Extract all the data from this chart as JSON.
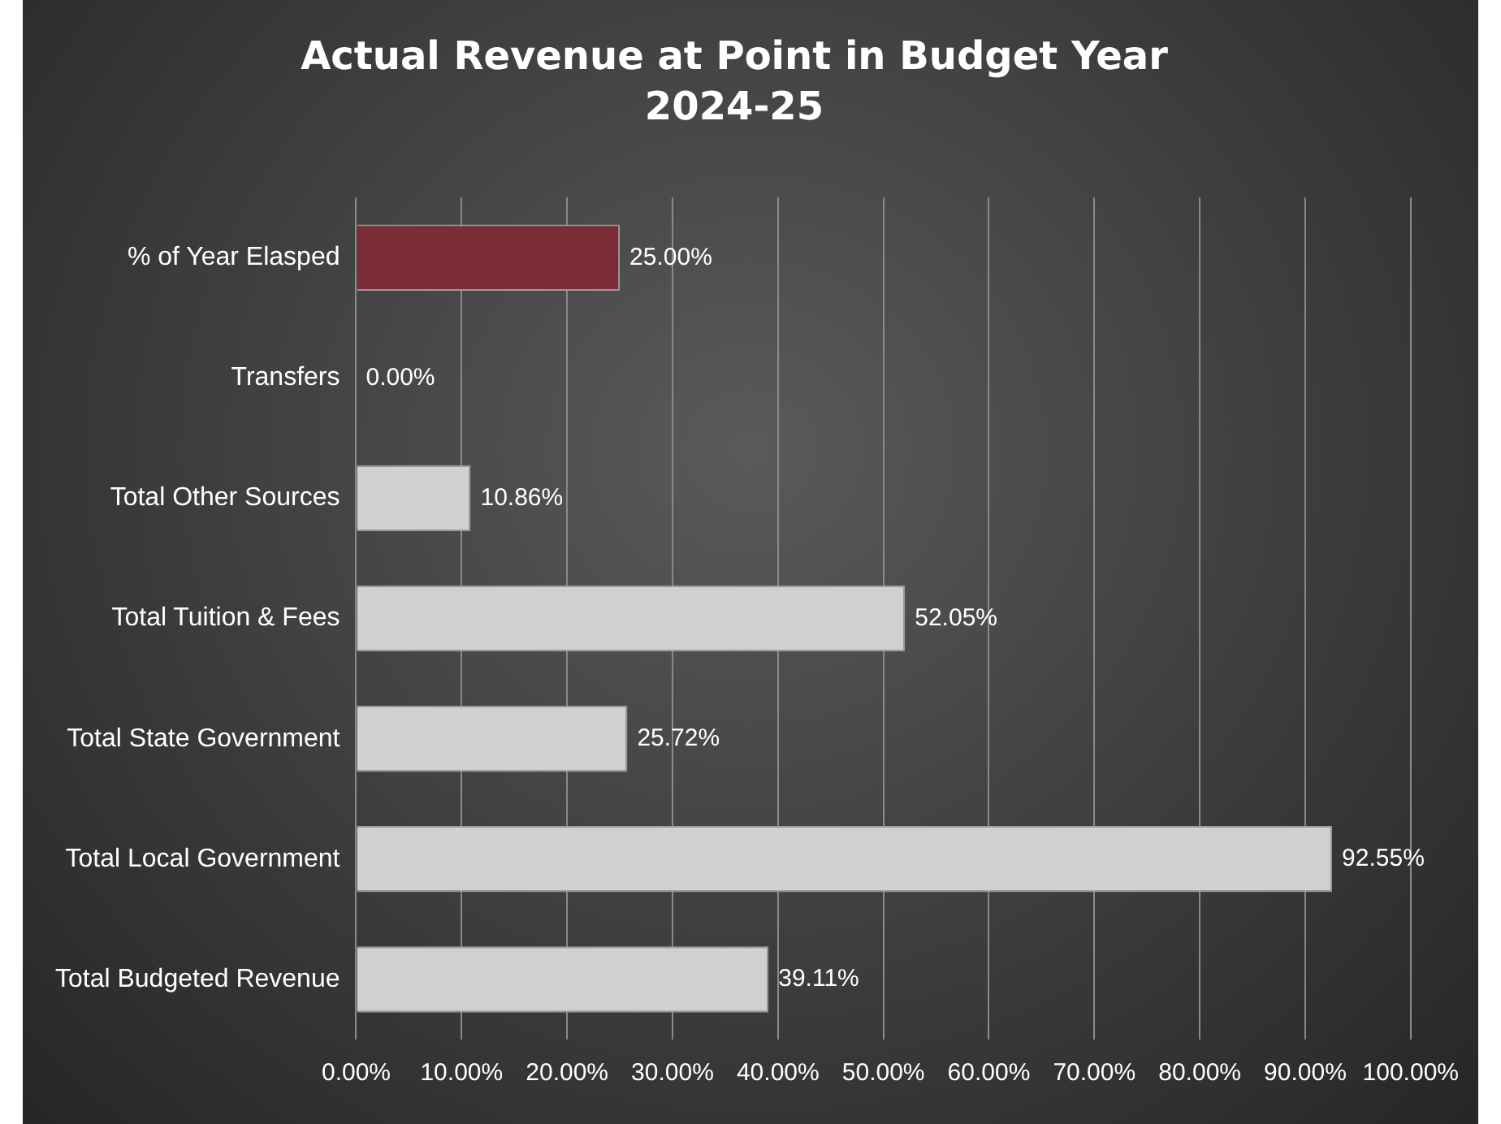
{
  "chart_data": {
    "type": "bar",
    "orientation": "horizontal",
    "title": "Actual Revenue at Point in Budget Year",
    "subtitle": "2024-25",
    "categories": [
      "% of Year Elasped",
      "Transfers",
      "Total Other Sources",
      "Total Tuition & Fees",
      "Total State Government",
      "Total Local Government",
      "Total Budgeted Revenue"
    ],
    "values": [
      25,
      0,
      10.86,
      52.05,
      25.72,
      92.55,
      39.11
    ],
    "colors": [
      "#7b2c34",
      "#d0d0d0",
      "#d0d0d0",
      "#d0d0d0",
      "#d0d0d0",
      "#d0d0d0",
      "#d0d0d0"
    ],
    "value_labels": [
      "25.00%",
      "0.00%",
      "10.86%",
      "52.05%",
      "25.72%",
      "92.55%",
      "39.11%"
    ],
    "xlim": [
      0,
      100
    ],
    "xticks": [
      {
        "value": 0,
        "label": "0.00%"
      },
      {
        "value": 10,
        "label": "10.00%"
      },
      {
        "value": 20,
        "label": "20.00%"
      },
      {
        "value": 30,
        "label": "30.00%"
      },
      {
        "value": 40,
        "label": "40.00%"
      },
      {
        "value": 50,
        "label": "50.00%"
      },
      {
        "value": 60,
        "label": "60.00%"
      },
      {
        "value": 70,
        "label": "70.00%"
      },
      {
        "value": 80,
        "label": "80.00%"
      },
      {
        "value": 90,
        "label": "90.00%"
      },
      {
        "value": 100,
        "label": "100.00%"
      }
    ],
    "grid": "x",
    "legend": false
  }
}
